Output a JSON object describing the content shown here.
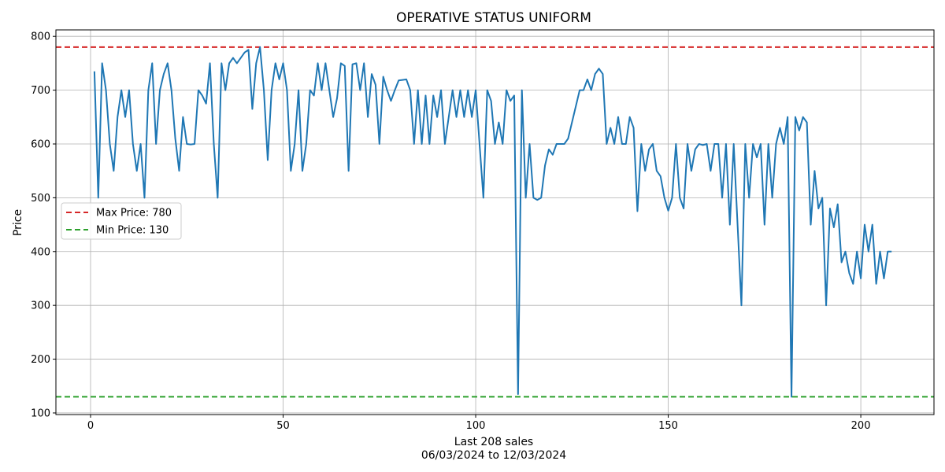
{
  "chart_data": {
    "type": "line",
    "title": "OPERATIVE STATUS UNIFORM",
    "xlabel": "Last 208 sales",
    "xlabel_sub": "06/03/2024 to 12/03/2024",
    "ylabel": "Price",
    "xlim": [
      -9,
      219
    ],
    "ylim": [
      97,
      812
    ],
    "xticks": [
      0,
      50,
      100,
      150,
      200
    ],
    "yticks": [
      100,
      200,
      300,
      400,
      500,
      600,
      700,
      800
    ],
    "grid": true,
    "legend_position": "center-left",
    "reference_lines": [
      {
        "name": "Max Price: 780",
        "value": 780,
        "color": "#d62728",
        "style": "dashed"
      },
      {
        "name": "Min Price: 130",
        "value": 130,
        "color": "#2ca02c",
        "style": "dashed"
      }
    ],
    "series": [
      {
        "color": "#1f77b4",
        "x": [
          1,
          2,
          3,
          4,
          5,
          6,
          7,
          8,
          9,
          10,
          11,
          12,
          13,
          14,
          15,
          16,
          17,
          18,
          19,
          20,
          21,
          22,
          23,
          24,
          25,
          26,
          27,
          28,
          29,
          30,
          31,
          32,
          33,
          34,
          35,
          36,
          37,
          38,
          39,
          40,
          41,
          42,
          43,
          44,
          45,
          46,
          47,
          48,
          49,
          50,
          51,
          52,
          53,
          54,
          55,
          56,
          57,
          58,
          59,
          60,
          61,
          62,
          63,
          64,
          65,
          66,
          67,
          68,
          69,
          70,
          71,
          72,
          73,
          74,
          75,
          76,
          77,
          78,
          79,
          80,
          81,
          82,
          83,
          84,
          85,
          86,
          87,
          88,
          89,
          90,
          91,
          92,
          93,
          94,
          95,
          96,
          97,
          98,
          99,
          100,
          101,
          102,
          103,
          104,
          105,
          106,
          107,
          108,
          109,
          110,
          111,
          112,
          113,
          114,
          115,
          116,
          117,
          118,
          119,
          120,
          121,
          122,
          123,
          124,
          125,
          126,
          127,
          128,
          129,
          130,
          131,
          132,
          133,
          134,
          135,
          136,
          137,
          138,
          139,
          140,
          141,
          142,
          143,
          144,
          145,
          146,
          147,
          148,
          149,
          150,
          151,
          152,
          153,
          154,
          155,
          156,
          157,
          158,
          159,
          160,
          161,
          162,
          163,
          164,
          165,
          166,
          167,
          168,
          169,
          170,
          171,
          172,
          173,
          174,
          175,
          176,
          177,
          178,
          179,
          180,
          181,
          182,
          183,
          184,
          185,
          186,
          187,
          188,
          189,
          190,
          191,
          192,
          193,
          194,
          195,
          196,
          197,
          198,
          199,
          200,
          201,
          202,
          203,
          204,
          205,
          206,
          207,
          208
        ],
        "values": [
          735,
          500,
          750,
          700,
          600,
          550,
          650,
          700,
          650,
          700,
          600,
          550,
          600,
          500,
          700,
          750,
          600,
          700,
          730,
          750,
          700,
          610,
          550,
          650,
          600,
          599,
          600,
          700,
          690,
          675,
          750,
          600,
          500,
          750,
          700,
          750,
          760,
          750,
          760,
          770,
          775,
          665,
          750,
          780,
          700,
          570,
          700,
          750,
          720,
          750,
          700,
          550,
          600,
          700,
          550,
          600,
          700,
          690,
          750,
          700,
          750,
          700,
          650,
          685,
          750,
          745,
          550,
          748,
          750,
          700,
          750,
          650,
          730,
          710,
          600,
          725,
          700,
          680,
          700,
          718,
          719,
          720,
          700,
          600,
          700,
          600,
          690,
          600,
          690,
          650,
          700,
          600,
          650,
          700,
          650,
          700,
          650,
          700,
          650,
          700,
          600,
          500,
          700,
          680,
          600,
          640,
          600,
          700,
          680,
          690,
          135,
          700,
          500,
          600,
          500,
          496,
          500,
          560,
          590,
          580,
          600,
          600,
          600,
          610,
          640,
          670,
          700,
          700,
          720,
          700,
          730,
          740,
          730,
          600,
          630,
          600,
          650,
          600,
          600,
          650,
          630,
          475,
          600,
          550,
          590,
          600,
          550,
          540,
          500,
          476,
          500,
          600,
          500,
          480,
          600,
          550,
          590,
          600,
          598,
          600,
          550,
          600,
          600,
          500,
          600,
          450,
          600,
          450,
          300,
          600,
          500,
          600,
          575,
          600,
          450,
          600,
          500,
          600,
          630,
          600,
          650,
          130,
          650,
          625,
          650,
          640,
          450,
          550,
          480,
          500,
          300,
          480,
          445,
          488,
          380,
          400,
          360,
          340,
          400,
          350,
          450,
          400,
          450,
          340,
          400,
          350,
          400,
          400
        ]
      }
    ]
  }
}
